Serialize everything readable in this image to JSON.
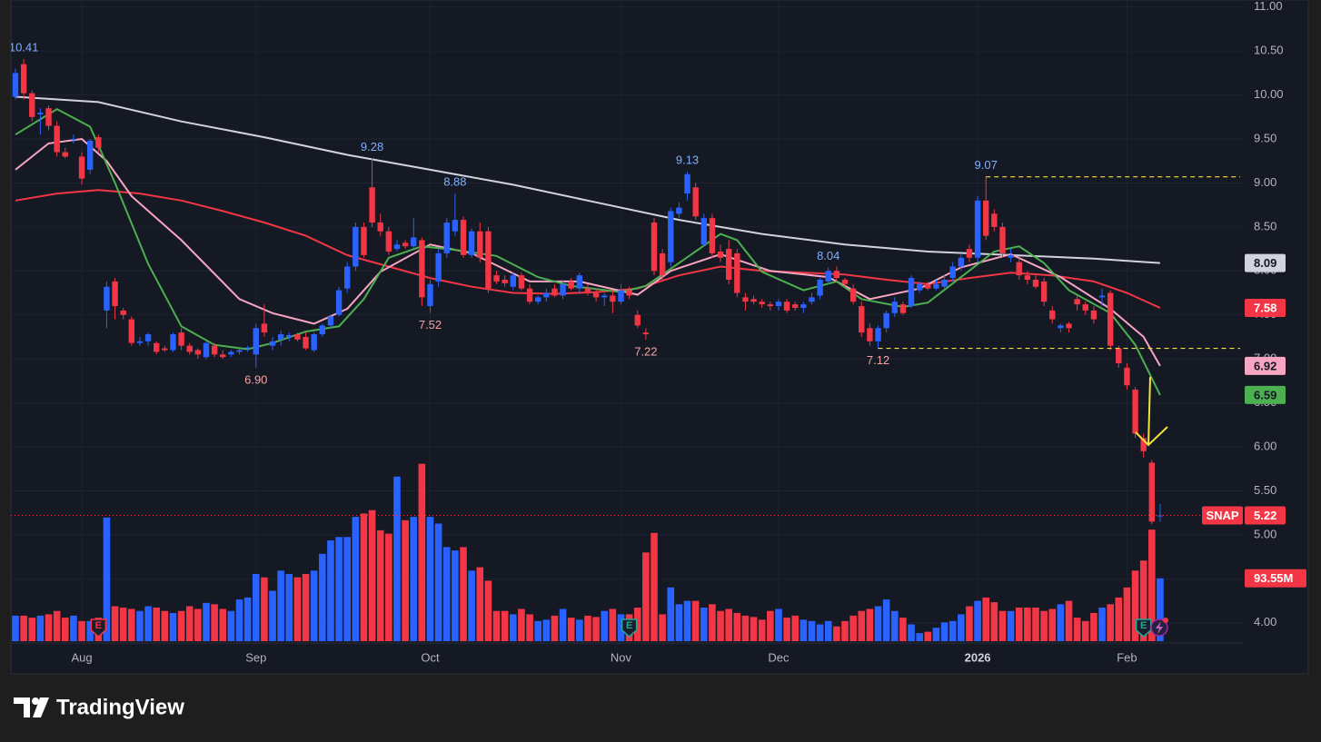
{
  "chart_data": {
    "type": "candlestick",
    "symbol": "SNAP",
    "brand": "TradingView",
    "categories": [
      null,
      null,
      null,
      null,
      null,
      null,
      null,
      null,
      "Aug",
      null,
      null,
      null,
      null,
      null,
      null,
      null,
      null,
      null,
      null,
      null,
      null,
      null,
      null,
      null,
      null,
      null,
      null,
      null,
      null,
      "Sep",
      null,
      null,
      null,
      null,
      null,
      null,
      null,
      null,
      null,
      null,
      null,
      null,
      null,
      null,
      null,
      null,
      null,
      null,
      null,
      null,
      "Oct",
      null,
      null,
      null,
      null,
      null,
      null,
      null,
      null,
      null,
      null,
      null,
      null,
      null,
      null,
      null,
      null,
      null,
      null,
      null,
      null,
      null,
      null,
      "Nov",
      null,
      null,
      null,
      null,
      null,
      null,
      null,
      null,
      null,
      null,
      null,
      null,
      null,
      null,
      null,
      null,
      null,
      null,
      "Dec",
      null,
      null,
      null,
      null,
      null,
      null,
      null,
      null,
      null,
      null,
      null,
      null,
      null,
      null,
      null,
      null,
      null,
      null,
      null,
      null,
      null,
      null,
      null,
      "2026",
      null,
      null,
      null,
      null,
      null,
      null,
      null,
      null,
      null,
      null,
      null,
      null,
      null,
      null,
      null,
      null,
      null,
      "Feb",
      null,
      null,
      null,
      null
    ],
    "open": [
      9.98,
      10.35,
      10.02,
      9.78,
      9.85,
      9.65,
      9.35,
      9.5,
      9.3,
      9.15,
      9.52,
      7.55,
      7.88,
      7.55,
      7.45,
      7.18,
      7.2,
      7.18,
      7.12,
      7.1,
      7.3,
      7.15,
      7.1,
      7.02,
      7.15,
      7.05,
      7.05,
      7.08,
      7.12,
      7.05,
      7.4,
      7.15,
      7.22,
      7.25,
      7.28,
      7.25,
      7.1,
      7.28,
      7.38,
      7.5,
      7.8,
      8.05,
      8.5,
      8.95,
      8.55,
      8.45,
      8.25,
      8.32,
      8.28,
      8.35,
      7.6,
      7.88,
      8.2,
      8.45,
      8.58,
      8.18,
      8.45,
      8.45,
      7.95,
      7.9,
      7.82,
      7.95,
      7.8,
      7.65,
      7.7,
      7.8,
      7.72,
      7.88,
      7.8,
      7.8,
      7.75,
      7.7,
      7.72,
      7.65,
      7.78,
      7.5,
      7.3,
      8.55,
      8.2,
      8.1,
      8.65,
      8.88,
      8.95,
      8.3,
      8.6,
      8.22,
      8.25,
      8.2,
      7.7,
      7.68,
      7.65,
      7.62,
      7.6,
      7.65,
      7.62,
      7.58,
      7.65,
      7.72,
      7.88,
      8.0,
      7.9,
      7.8,
      7.6,
      7.35,
      7.2,
      7.35,
      7.52,
      7.62,
      7.6,
      7.78,
      7.85,
      7.8,
      7.82,
      7.92,
      8.05,
      8.25,
      8.15,
      8.8,
      8.65,
      8.5,
      8.15,
      8.1,
      7.95,
      7.9,
      7.88,
      7.55,
      7.35,
      7.4,
      7.68,
      7.62,
      7.55,
      7.7,
      7.75,
      7.12,
      6.9,
      6.65,
      6.1,
      5.82,
      5.22
    ],
    "high": [
      10.3,
      10.41,
      10.05,
      9.85,
      9.88,
      9.7,
      9.4,
      9.55,
      9.35,
      9.5,
      9.55,
      7.88,
      7.92,
      7.58,
      7.48,
      7.25,
      7.3,
      7.2,
      7.15,
      7.3,
      7.35,
      7.18,
      7.12,
      7.2,
      7.18,
      7.1,
      7.1,
      7.12,
      7.15,
      7.4,
      7.62,
      7.25,
      7.32,
      7.3,
      7.3,
      7.3,
      7.3,
      7.4,
      7.5,
      7.82,
      8.1,
      8.55,
      8.55,
      9.28,
      8.65,
      8.5,
      8.35,
      8.35,
      8.6,
      8.38,
      7.9,
      8.25,
      8.6,
      8.88,
      8.62,
      8.48,
      8.55,
      8.5,
      8.0,
      7.95,
      7.98,
      7.98,
      7.85,
      7.72,
      7.8,
      7.85,
      7.9,
      7.92,
      7.98,
      7.85,
      7.8,
      7.75,
      7.78,
      7.85,
      7.82,
      7.55,
      7.35,
      8.6,
      8.25,
      8.72,
      8.78,
      9.13,
      9.0,
      8.65,
      8.65,
      8.3,
      8.35,
      8.25,
      7.75,
      7.72,
      7.68,
      7.65,
      7.68,
      7.68,
      7.65,
      7.65,
      7.75,
      7.92,
      8.04,
      8.05,
      7.92,
      7.85,
      7.65,
      7.4,
      7.38,
      7.55,
      7.7,
      7.65,
      7.95,
      7.88,
      7.88,
      7.9,
      7.95,
      8.1,
      8.2,
      8.3,
      8.85,
      9.07,
      8.7,
      8.55,
      8.25,
      8.15,
      8.0,
      7.95,
      7.92,
      7.6,
      7.4,
      7.42,
      7.72,
      7.65,
      7.6,
      7.8,
      7.78,
      7.15,
      6.95,
      6.68,
      6.15,
      5.85,
      5.35
    ],
    "low": [
      9.95,
      9.95,
      9.7,
      9.55,
      9.6,
      9.3,
      9.28,
      9.45,
      8.98,
      9.1,
      9.35,
      7.35,
      7.45,
      7.45,
      7.15,
      7.15,
      7.15,
      7.05,
      7.08,
      7.08,
      7.1,
      7.05,
      7.0,
      7.0,
      7.02,
      7.0,
      7.02,
      7.05,
      7.08,
      6.9,
      7.25,
      7.1,
      7.15,
      7.2,
      7.2,
      7.1,
      7.08,
      7.25,
      7.35,
      7.48,
      7.75,
      8.0,
      8.15,
      8.5,
      8.4,
      8.18,
      8.22,
      8.25,
      8.25,
      7.6,
      7.52,
      7.82,
      8.15,
      8.4,
      8.15,
      8.15,
      8.1,
      7.75,
      7.85,
      7.82,
      7.78,
      7.78,
      7.62,
      7.62,
      7.65,
      7.7,
      7.68,
      7.78,
      7.75,
      7.72,
      7.65,
      7.6,
      7.52,
      7.62,
      7.68,
      7.35,
      7.22,
      7.95,
      7.9,
      8.05,
      8.6,
      8.8,
      8.58,
      8.28,
      8.15,
      8.1,
      7.85,
      7.7,
      7.55,
      7.62,
      7.58,
      7.55,
      7.55,
      7.52,
      7.55,
      7.52,
      7.62,
      7.68,
      7.85,
      7.88,
      7.82,
      7.62,
      7.25,
      7.15,
      7.12,
      7.3,
      7.48,
      7.5,
      7.58,
      7.75,
      7.78,
      7.78,
      7.8,
      7.88,
      8.0,
      8.1,
      8.1,
      8.35,
      8.45,
      8.15,
      8.1,
      7.9,
      7.85,
      7.8,
      7.6,
      7.4,
      7.3,
      7.3,
      7.55,
      7.5,
      7.4,
      7.6,
      7.1,
      6.9,
      6.65,
      6.1,
      5.88,
      5.12,
      5.15
    ],
    "close": [
      10.25,
      10.02,
      9.75,
      9.8,
      9.65,
      9.35,
      9.3,
      9.5,
      9.05,
      9.48,
      9.4,
      7.82,
      7.6,
      7.5,
      7.18,
      7.2,
      7.28,
      7.08,
      7.1,
      7.28,
      7.15,
      7.08,
      7.05,
      7.18,
      7.05,
      7.02,
      7.08,
      7.1,
      7.13,
      7.35,
      7.3,
      7.2,
      7.28,
      7.27,
      7.22,
      7.12,
      7.28,
      7.38,
      7.48,
      7.78,
      8.05,
      8.5,
      8.18,
      8.55,
      8.45,
      8.22,
      8.3,
      8.28,
      8.38,
      7.7,
      7.85,
      8.2,
      8.55,
      8.58,
      8.18,
      8.45,
      8.15,
      7.8,
      7.88,
      7.86,
      7.95,
      7.8,
      7.65,
      7.7,
      7.75,
      7.72,
      7.85,
      7.8,
      7.95,
      7.75,
      7.7,
      7.72,
      7.65,
      7.78,
      7.72,
      7.38,
      7.28,
      8.0,
      7.95,
      8.68,
      8.72,
      9.1,
      8.62,
      8.6,
      8.2,
      8.15,
      7.9,
      7.75,
      7.65,
      7.65,
      7.62,
      7.6,
      7.65,
      7.55,
      7.58,
      7.62,
      7.7,
      7.9,
      8.0,
      7.92,
      7.85,
      7.65,
      7.3,
      7.2,
      7.35,
      7.52,
      7.65,
      7.52,
      7.92,
      7.85,
      7.8,
      7.85,
      7.9,
      8.05,
      8.15,
      8.15,
      8.8,
      8.4,
      8.5,
      8.2,
      8.18,
      7.95,
      7.9,
      7.82,
      7.65,
      7.45,
      7.38,
      7.35,
      7.62,
      7.55,
      7.45,
      7.72,
      7.15,
      6.95,
      6.7,
      6.15,
      5.95,
      5.15,
      5.22
    ],
    "volume": [
      38,
      38,
      35,
      38,
      40,
      45,
      35,
      38,
      30,
      30,
      35,
      184,
      52,
      50,
      48,
      45,
      52,
      50,
      45,
      42,
      45,
      52,
      48,
      57,
      55,
      48,
      45,
      62,
      65,
      100,
      95,
      75,
      105,
      100,
      95,
      100,
      105,
      130,
      150,
      155,
      155,
      185,
      190,
      195,
      165,
      160,
      245,
      180,
      185,
      264,
      185,
      175,
      140,
      135,
      140,
      105,
      110,
      90,
      45,
      45,
      40,
      48,
      40,
      30,
      32,
      38,
      48,
      35,
      32,
      38,
      36,
      45,
      48,
      40,
      40,
      50,
      132,
      161,
      40,
      80,
      55,
      60,
      60,
      50,
      55,
      45,
      48,
      42,
      38,
      36,
      32,
      45,
      48,
      35,
      38,
      32,
      30,
      25,
      30,
      22,
      30,
      38,
      45,
      48,
      52,
      62,
      45,
      35,
      25,
      12,
      14,
      20,
      28,
      30,
      40,
      52,
      60,
      65,
      58,
      45,
      45,
      50,
      50,
      50,
      45,
      48,
      55,
      60,
      35,
      30,
      42,
      50,
      55,
      65,
      80,
      105,
      120,
      166,
      93.55
    ],
    "volume_label": {
      "index": 138,
      "label": "93.55M"
    },
    "up_color": "#2962ff",
    "down_color": "#f23645",
    "ylim": [
      3.77,
      11.08
    ],
    "yticks": [
      {
        "value": 4,
        "label": "4.00"
      },
      {
        "value": 4.5,
        "label": "4.50"
      },
      {
        "value": 5,
        "label": "5.00"
      },
      {
        "value": 5.5,
        "label": "5.50"
      },
      {
        "value": 6,
        "label": "6.00"
      },
      {
        "value": 6.5,
        "label": "6.50"
      },
      {
        "value": 7,
        "label": "7.00"
      },
      {
        "value": 7.5,
        "label": "7.50"
      },
      {
        "value": 8,
        "label": "8.00"
      },
      {
        "value": 8.5,
        "label": "8.50"
      },
      {
        "value": 9,
        "label": "9.00"
      },
      {
        "value": 9.5,
        "label": "9.50"
      },
      {
        "value": 10,
        "label": "10.00"
      },
      {
        "value": 10.5,
        "label": "10.50"
      },
      {
        "value": 11,
        "label": "11.00"
      }
    ],
    "grid": true,
    "series": [
      {
        "color": "#d1d4dc",
        "text_color": "#131722",
        "x": [
          0,
          10,
          20,
          30,
          40,
          50,
          60,
          70,
          80,
          90,
          100,
          110,
          120,
          130,
          138
        ],
        "values": [
          9.98,
          9.92,
          9.7,
          9.52,
          9.32,
          9.15,
          8.98,
          8.78,
          8.58,
          8.42,
          8.3,
          8.22,
          8.18,
          8.14,
          8.09
        ]
      },
      {
        "color": "#f23645",
        "text_color": "#ffffff",
        "x": [
          0,
          5,
          10,
          15,
          20,
          25,
          30,
          35,
          40,
          45,
          50,
          55,
          60,
          65,
          70,
          75,
          80,
          85,
          90,
          95,
          100,
          105,
          110,
          115,
          120,
          125,
          130,
          134,
          138
        ],
        "values": [
          8.8,
          8.88,
          8.92,
          8.88,
          8.8,
          8.68,
          8.55,
          8.4,
          8.18,
          8.05,
          7.92,
          7.82,
          7.75,
          7.74,
          7.76,
          7.8,
          7.95,
          8.05,
          8.0,
          7.98,
          7.96,
          7.9,
          7.85,
          7.92,
          7.98,
          7.95,
          7.88,
          7.75,
          7.58
        ]
      },
      {
        "color": "#f8a5c2",
        "text_color": "#131722",
        "x": [
          0,
          4,
          8,
          11,
          14,
          20,
          27,
          31,
          36,
          40,
          44,
          50,
          55,
          62,
          68,
          75,
          79,
          85,
          91,
          98,
          103,
          109,
          114,
          120,
          126,
          132,
          136,
          138
        ],
        "values": [
          9.15,
          9.45,
          9.5,
          9.25,
          8.85,
          8.35,
          7.68,
          7.52,
          7.4,
          7.57,
          7.99,
          8.3,
          8.2,
          7.88,
          7.88,
          7.73,
          8.0,
          8.19,
          8.0,
          7.93,
          7.68,
          7.8,
          8.04,
          8.19,
          7.93,
          7.57,
          7.25,
          6.92
        ]
      },
      {
        "color": "#4caf50",
        "text_color": "#131722",
        "x": [
          0,
          5,
          9,
          12,
          16,
          20,
          24,
          28,
          31,
          35,
          39,
          42,
          45,
          49,
          53,
          58,
          63,
          67,
          73,
          76,
          80,
          85,
          87,
          90,
          95,
          99,
          102,
          107,
          110,
          114,
          118,
          121,
          124,
          127,
          132,
          135,
          138
        ],
        "values": [
          9.55,
          9.84,
          9.64,
          9.0,
          8.08,
          7.37,
          7.16,
          7.11,
          7.18,
          7.31,
          7.37,
          7.68,
          8.15,
          8.28,
          8.24,
          8.17,
          7.93,
          7.83,
          7.76,
          7.83,
          8.09,
          8.42,
          8.35,
          7.99,
          7.78,
          7.88,
          7.68,
          7.59,
          7.64,
          7.93,
          8.22,
          8.28,
          8.09,
          7.78,
          7.52,
          7.16,
          6.59
        ]
      }
    ],
    "markers": [
      {
        "index": 1,
        "at": "high",
        "label": "10.41"
      },
      {
        "index": 43,
        "at": "high",
        "label": "9.28"
      },
      {
        "index": 53,
        "at": "high",
        "label": "8.88"
      },
      {
        "index": 81,
        "at": "high",
        "label": "9.13"
      },
      {
        "index": 98,
        "at": "high",
        "label": "8.04"
      },
      {
        "index": 117,
        "at": "high",
        "label": "9.07"
      },
      {
        "index": 29,
        "at": "low",
        "label": "6.90"
      },
      {
        "index": 50,
        "at": "low",
        "label": "7.52"
      },
      {
        "index": 76,
        "at": "low",
        "label": "7.22"
      },
      {
        "index": 104,
        "at": "low",
        "label": "7.12"
      }
    ],
    "levels": [
      {
        "value": 9.07,
        "from": 117
      },
      {
        "value": 7.12,
        "from": 104
      }
    ],
    "level_color": "#f5e13b",
    "events": [
      {
        "index": 10,
        "label": "E",
        "color": "#f23645"
      },
      {
        "index": 74,
        "label": "E",
        "color": "#26a69a"
      },
      {
        "index": 136,
        "label": "E",
        "color": "#26a69a"
      }
    ]
  }
}
